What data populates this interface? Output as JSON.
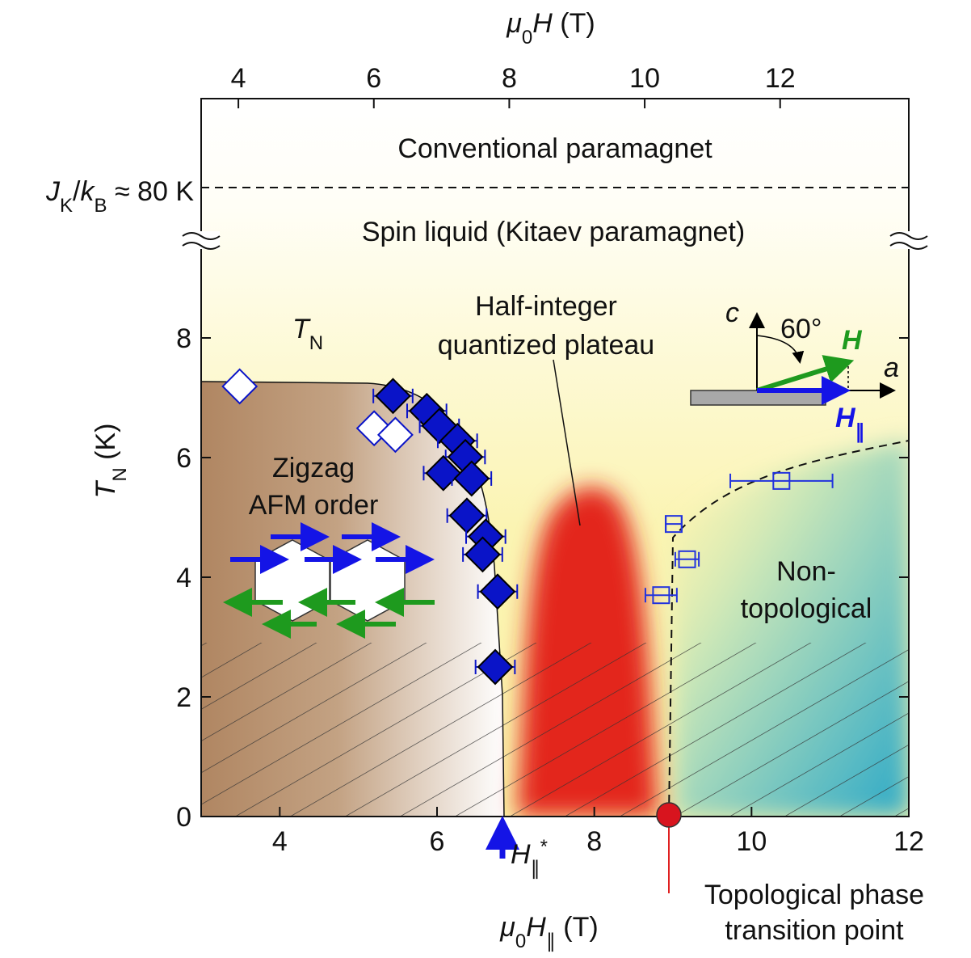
{
  "chart_data": {
    "type": "scatter",
    "xlabel": [
      "μ",
      "0",
      "H",
      "∥",
      " (T)"
    ],
    "x2label": [
      "μ",
      "0",
      "H",
      " (T)"
    ],
    "ylabel": [
      "T",
      "N",
      " (K)"
    ],
    "xlim": [
      3,
      12
    ],
    "xticks": [
      4,
      6,
      8,
      10,
      12
    ],
    "x2lim": [
      3.45,
      13.9
    ],
    "x2ticks": [
      4,
      6,
      8,
      10,
      12
    ],
    "ylim": [
      0,
      12
    ],
    "yticks": [
      0,
      2,
      4,
      6,
      8
    ],
    "annotations": {
      "conventional": "Conventional paramagnet",
      "spin_liquid": "Spin liquid (Kitaev paramagnet)",
      "jk": [
        "J",
        "K",
        "/",
        "k",
        "B",
        " ≈ 80 K"
      ],
      "tn": [
        "T",
        "N"
      ],
      "plateau": [
        "Half-integer",
        "quantized plateau"
      ],
      "zigzag": [
        "Zigzag",
        "AFM order"
      ],
      "nontop": [
        "Non-",
        "topological"
      ],
      "hstar": [
        "H",
        "∥",
        "*"
      ],
      "transition": [
        "Topological phase",
        "transition point"
      ],
      "inset_c": "c",
      "inset_angle": "60°",
      "inset_h": "H",
      "inset_a": "a",
      "inset_hpar": [
        "H",
        "∥"
      ]
    },
    "series": [
      {
        "marker": "diamond",
        "filled": true,
        "color": "#0a14c8",
        "x": [
          5.44,
          5.87,
          6.03,
          6.26,
          6.36,
          6.08,
          6.44,
          6.38,
          6.62,
          6.58,
          6.77,
          6.74
        ],
        "values": [
          7.03,
          6.78,
          6.53,
          6.28,
          6.01,
          5.74,
          5.65,
          5.03,
          4.68,
          4.38,
          3.76,
          2.5
        ],
        "xerr": [
          0.25,
          0.25,
          0.25,
          0.25,
          0.25,
          0.25,
          0.25,
          0.25,
          0.25,
          0.25,
          0.25,
          0.25
        ]
      },
      {
        "marker": "diamond",
        "filled": false,
        "color": "#0a14c8",
        "x": [
          3.49,
          5.2,
          5.47
        ],
        "values": [
          7.19,
          6.49,
          6.38
        ]
      },
      {
        "marker": "square",
        "filled": false,
        "color": "#2233dd",
        "x": [
          9.01,
          9.18,
          8.85,
          10.38
        ],
        "values": [
          4.89,
          4.3,
          3.7,
          5.61
        ],
        "xerr": [
          0.1,
          0.15,
          0.2,
          0.65
        ]
      }
    ]
  }
}
